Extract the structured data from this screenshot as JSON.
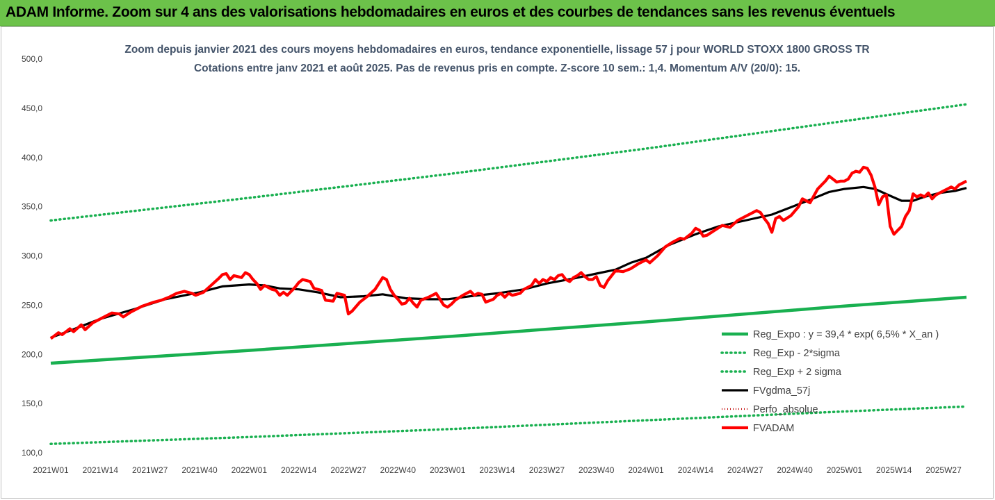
{
  "header": {
    "banner_title": "ADAM Informe. Zoom sur 4 ans des valorisations hebdomadaires en euros et des courbes de tendances sans les revenus éventuels"
  },
  "colors": {
    "banner_bg": "#6cc24a",
    "trend_green": "#19b050",
    "fvadam_red": "#ff0000",
    "fvgdma_black": "#000000",
    "perfo_red": "#c00000"
  },
  "chart_data": {
    "type": "line",
    "title_lines": [
      "Zoom depuis janvier 2021 des cours moyens hebdomadaires en euros, tendance exponentielle, lissage 57 j pour WORLD STOXX 1800 GROSS TR",
      "Cotations entre janv 2021 et août 2025. Pas de revenus pris en compte. Z-score 10 sem.: 1,4. Momentum A/V (20/0): 15."
    ],
    "ylim": [
      100,
      500
    ],
    "y_ticks": [
      "100,0",
      "150,0",
      "200,0",
      "250,0",
      "300,0",
      "350,0",
      "400,0",
      "450,0",
      "500,0"
    ],
    "grid": false,
    "legend_position": "bottom-right",
    "x_index_range": [
      0,
      240
    ],
    "x_ticks": [
      {
        "i": 0,
        "label": "2021W01"
      },
      {
        "i": 13,
        "label": "2021W14"
      },
      {
        "i": 26,
        "label": "2021W27"
      },
      {
        "i": 39,
        "label": "2021W40"
      },
      {
        "i": 52,
        "label": "2022W01"
      },
      {
        "i": 65,
        "label": "2022W14"
      },
      {
        "i": 78,
        "label": "2022W27"
      },
      {
        "i": 91,
        "label": "2022W40"
      },
      {
        "i": 104,
        "label": "2023W01"
      },
      {
        "i": 117,
        "label": "2023W14"
      },
      {
        "i": 130,
        "label": "2023W27"
      },
      {
        "i": 143,
        "label": "2023W40"
      },
      {
        "i": 156,
        "label": "2024W01"
      },
      {
        "i": 169,
        "label": "2024W14"
      },
      {
        "i": 182,
        "label": "2024W27"
      },
      {
        "i": 195,
        "label": "2024W40"
      },
      {
        "i": 208,
        "label": "2025W01"
      },
      {
        "i": 221,
        "label": "2025W14"
      },
      {
        "i": 234,
        "label": "2025W27"
      }
    ],
    "series": [
      {
        "name": "Reg_Expo : y = 39,4 * exp( 6,5% *  X_an )",
        "style": "solid-green",
        "points": [
          [
            0,
            191
          ],
          [
            52,
            204
          ],
          [
            104,
            218
          ],
          [
            156,
            233
          ],
          [
            208,
            249
          ],
          [
            240,
            258
          ]
        ]
      },
      {
        "name": "Reg_Exp - 2*sigma",
        "style": "dotted-green",
        "points": [
          [
            0,
            109
          ],
          [
            52,
            116
          ],
          [
            104,
            124
          ],
          [
            156,
            133
          ],
          [
            208,
            142
          ],
          [
            240,
            147
          ]
        ]
      },
      {
        "name": "Reg_Exp + 2 sigma",
        "style": "dotted-green",
        "points": [
          [
            0,
            336
          ],
          [
            52,
            359
          ],
          [
            104,
            383
          ],
          [
            156,
            409
          ],
          [
            208,
            437
          ],
          [
            240,
            454
          ]
        ]
      },
      {
        "name": "FVgdma_57j",
        "style": "solid-black",
        "points": [
          [
            0,
            217
          ],
          [
            5,
            224
          ],
          [
            13,
            236
          ],
          [
            22,
            246
          ],
          [
            30,
            256
          ],
          [
            39,
            263
          ],
          [
            45,
            269
          ],
          [
            52,
            271
          ],
          [
            56,
            270
          ],
          [
            60,
            267
          ],
          [
            65,
            266
          ],
          [
            70,
            263
          ],
          [
            76,
            258
          ],
          [
            82,
            259
          ],
          [
            87,
            261
          ],
          [
            93,
            257
          ],
          [
            99,
            256
          ],
          [
            104,
            256
          ],
          [
            110,
            259
          ],
          [
            117,
            262
          ],
          [
            124,
            266
          ],
          [
            130,
            272
          ],
          [
            137,
            277
          ],
          [
            143,
            282
          ],
          [
            148,
            286
          ],
          [
            152,
            293
          ],
          [
            156,
            298
          ],
          [
            162,
            311
          ],
          [
            169,
            322
          ],
          [
            175,
            330
          ],
          [
            182,
            336
          ],
          [
            189,
            342
          ],
          [
            195,
            351
          ],
          [
            199,
            357
          ],
          [
            204,
            365
          ],
          [
            208,
            368
          ],
          [
            213,
            370
          ],
          [
            216,
            368
          ],
          [
            220,
            361
          ],
          [
            223,
            356
          ],
          [
            226,
            356
          ],
          [
            229,
            360
          ],
          [
            233,
            364
          ],
          [
            237,
            366
          ],
          [
            240,
            369
          ]
        ]
      },
      {
        "name": "Perfo_absolue",
        "style": "dotted-darkred",
        "points": []
      },
      {
        "name": "FVADAM",
        "style": "thick-red",
        "points": [
          [
            0,
            216
          ],
          [
            2,
            222
          ],
          [
            3,
            220
          ],
          [
            5,
            226
          ],
          [
            6,
            223
          ],
          [
            8,
            230
          ],
          [
            9,
            225
          ],
          [
            11,
            232
          ],
          [
            14,
            238
          ],
          [
            16,
            242
          ],
          [
            18,
            241
          ],
          [
            19,
            238
          ],
          [
            21,
            243
          ],
          [
            24,
            249
          ],
          [
            27,
            253
          ],
          [
            29,
            255
          ],
          [
            31,
            258
          ],
          [
            33,
            262
          ],
          [
            35,
            264
          ],
          [
            37,
            262
          ],
          [
            38,
            260
          ],
          [
            40,
            263
          ],
          [
            42,
            270
          ],
          [
            44,
            277
          ],
          [
            45,
            281
          ],
          [
            46,
            282
          ],
          [
            47,
            276
          ],
          [
            48,
            280
          ],
          [
            50,
            278
          ],
          [
            51,
            283
          ],
          [
            52,
            281
          ],
          [
            53,
            276
          ],
          [
            54,
            272
          ],
          [
            55,
            266
          ],
          [
            56,
            270
          ],
          [
            58,
            266
          ],
          [
            59,
            265
          ],
          [
            60,
            260
          ],
          [
            61,
            263
          ],
          [
            62,
            260
          ],
          [
            64,
            268
          ],
          [
            65,
            273
          ],
          [
            66,
            276
          ],
          [
            68,
            274
          ],
          [
            69,
            267
          ],
          [
            71,
            265
          ],
          [
            72,
            255
          ],
          [
            74,
            254
          ],
          [
            75,
            262
          ],
          [
            77,
            260
          ],
          [
            78,
            241
          ],
          [
            79,
            244
          ],
          [
            81,
            253
          ],
          [
            83,
            259
          ],
          [
            85,
            266
          ],
          [
            86,
            272
          ],
          [
            87,
            278
          ],
          [
            88,
            276
          ],
          [
            89,
            266
          ],
          [
            90,
            260
          ],
          [
            91,
            256
          ],
          [
            92,
            251
          ],
          [
            93,
            252
          ],
          [
            94,
            257
          ],
          [
            95,
            252
          ],
          [
            96,
            248
          ],
          [
            97,
            255
          ],
          [
            99,
            258
          ],
          [
            100,
            260
          ],
          [
            101,
            262
          ],
          [
            102,
            256
          ],
          [
            103,
            250
          ],
          [
            104,
            248
          ],
          [
            105,
            251
          ],
          [
            106,
            255
          ],
          [
            108,
            260
          ],
          [
            110,
            264
          ],
          [
            111,
            260
          ],
          [
            112,
            262
          ],
          [
            113,
            261
          ],
          [
            114,
            253
          ],
          [
            116,
            256
          ],
          [
            117,
            260
          ],
          [
            118,
            262
          ],
          [
            119,
            258
          ],
          [
            120,
            262
          ],
          [
            121,
            260
          ],
          [
            123,
            262
          ],
          [
            124,
            266
          ],
          [
            126,
            270
          ],
          [
            127,
            276
          ],
          [
            128,
            272
          ],
          [
            129,
            276
          ],
          [
            130,
            274
          ],
          [
            131,
            278
          ],
          [
            132,
            276
          ],
          [
            133,
            280
          ],
          [
            134,
            281
          ],
          [
            135,
            276
          ],
          [
            136,
            274
          ],
          [
            137,
            278
          ],
          [
            138,
            280
          ],
          [
            139,
            283
          ],
          [
            140,
            279
          ],
          [
            141,
            276
          ],
          [
            142,
            276
          ],
          [
            143,
            279
          ],
          [
            144,
            270
          ],
          [
            145,
            268
          ],
          [
            146,
            275
          ],
          [
            148,
            285
          ],
          [
            150,
            284
          ],
          [
            152,
            287
          ],
          [
            154,
            292
          ],
          [
            156,
            296
          ],
          [
            157,
            293
          ],
          [
            159,
            300
          ],
          [
            161,
            309
          ],
          [
            163,
            314
          ],
          [
            165,
            318
          ],
          [
            166,
            317
          ],
          [
            168,
            323
          ],
          [
            169,
            328
          ],
          [
            170,
            326
          ],
          [
            171,
            320
          ],
          [
            172,
            321
          ],
          [
            174,
            326
          ],
          [
            176,
            331
          ],
          [
            177,
            330
          ],
          [
            178,
            329
          ],
          [
            180,
            336
          ],
          [
            182,
            340
          ],
          [
            184,
            344
          ],
          [
            185,
            346
          ],
          [
            186,
            344
          ],
          [
            187,
            338
          ],
          [
            188,
            333
          ],
          [
            189,
            324
          ],
          [
            190,
            338
          ],
          [
            191,
            340
          ],
          [
            192,
            336
          ],
          [
            194,
            341
          ],
          [
            196,
            350
          ],
          [
            197,
            358
          ],
          [
            198,
            356
          ],
          [
            199,
            354
          ],
          [
            200,
            361
          ],
          [
            201,
            368
          ],
          [
            202,
            372
          ],
          [
            203,
            376
          ],
          [
            204,
            381
          ],
          [
            205,
            378
          ],
          [
            206,
            375
          ],
          [
            207,
            376
          ],
          [
            208,
            376
          ],
          [
            209,
            378
          ],
          [
            210,
            384
          ],
          [
            211,
            386
          ],
          [
            212,
            385
          ],
          [
            213,
            390
          ],
          [
            214,
            389
          ],
          [
            215,
            382
          ],
          [
            216,
            370
          ],
          [
            217,
            352
          ],
          [
            218,
            360
          ],
          [
            219,
            362
          ],
          [
            220,
            330
          ],
          [
            221,
            322
          ],
          [
            222,
            326
          ],
          [
            223,
            330
          ],
          [
            224,
            340
          ],
          [
            225,
            346
          ],
          [
            226,
            363
          ],
          [
            227,
            360
          ],
          [
            228,
            362
          ],
          [
            229,
            360
          ],
          [
            230,
            364
          ],
          [
            231,
            358
          ],
          [
            232,
            362
          ],
          [
            233,
            364
          ],
          [
            234,
            366
          ],
          [
            235,
            368
          ],
          [
            236,
            370
          ],
          [
            237,
            368
          ],
          [
            238,
            372
          ],
          [
            239,
            374
          ],
          [
            240,
            376
          ]
        ]
      }
    ]
  }
}
